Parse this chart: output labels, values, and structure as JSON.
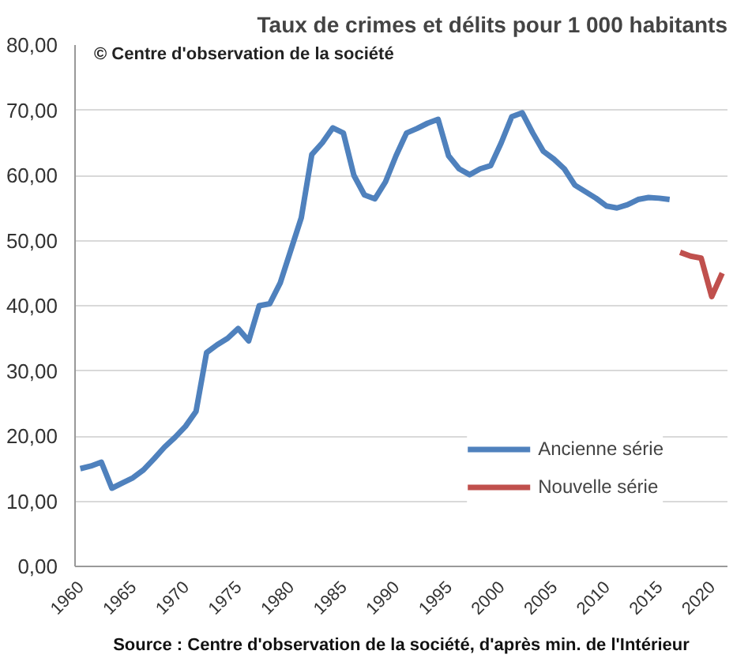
{
  "chart_data": {
    "type": "line",
    "title": "Taux de crimes et délits pour 1 000 habitants",
    "annotations": [
      "© Centre  d'observation de la société",
      "Source : Centre d'observation de la société, d'après min. de l'Intérieur"
    ],
    "series": [
      {
        "name": "Ancienne série",
        "color": "#4f81bd",
        "x": [
          1960,
          1961,
          1962,
          1963,
          1964,
          1965,
          1966,
          1967,
          1968,
          1969,
          1970,
          1971,
          1972,
          1973,
          1974,
          1975,
          1976,
          1977,
          1978,
          1979,
          1980,
          1981,
          1982,
          1983,
          1984,
          1985,
          1986,
          1987,
          1988,
          1989,
          1990,
          1991,
          1992,
          1993,
          1994,
          1995,
          1996,
          1997,
          1998,
          1999,
          2000,
          2001,
          2002,
          2003,
          2004,
          2005,
          2006,
          2007,
          2008,
          2009,
          2010,
          2011,
          2012,
          2013,
          2014,
          2015,
          2016
        ],
        "values": [
          15.0,
          15.4,
          16.0,
          12.0,
          12.8,
          13.6,
          14.8,
          16.5,
          18.3,
          19.8,
          21.5,
          23.8,
          32.8,
          34.0,
          35.0,
          36.5,
          34.6,
          40.0,
          40.3,
          43.5,
          48.5,
          53.5,
          63.2,
          65.0,
          67.3,
          66.5,
          60.0,
          57.0,
          56.4,
          59.0,
          63.0,
          66.5,
          67.2,
          68.0,
          68.6,
          63.0,
          61.0,
          60.1,
          61.0,
          61.5,
          65.0,
          69.0,
          69.6,
          66.5,
          63.7,
          62.5,
          61.0,
          58.5,
          57.5,
          56.5,
          55.3,
          55.0,
          55.5,
          56.3,
          56.6,
          56.5,
          56.3
        ]
      },
      {
        "name": "Nouvelle série",
        "color": "#c0504d",
        "x": [
          2017,
          2018,
          2019,
          2020,
          2021
        ],
        "values": [
          48.2,
          47.6,
          47.3,
          41.4,
          45.0
        ]
      }
    ],
    "xlim": [
      1959.5,
      2021.5
    ],
    "xticks": [
      1960,
      1965,
      1970,
      1975,
      1980,
      1985,
      1990,
      1995,
      2000,
      2005,
      2010,
      2015,
      2020
    ],
    "ylim": [
      0,
      80
    ],
    "yticks": [
      {
        "value": 0,
        "label": "0,00"
      },
      {
        "value": 10,
        "label": "10,00"
      },
      {
        "value": 20,
        "label": "20,00"
      },
      {
        "value": 30,
        "label": "30,00"
      },
      {
        "value": 40,
        "label": "40,00"
      },
      {
        "value": 50,
        "label": "50,00"
      },
      {
        "value": 60,
        "label": "60,00"
      },
      {
        "value": 70,
        "label": "70,00"
      },
      {
        "value": 80,
        "label": "80,00"
      }
    ],
    "grid": "y",
    "legend": "bottom right",
    "line_style": "solid",
    "marker": "none"
  }
}
